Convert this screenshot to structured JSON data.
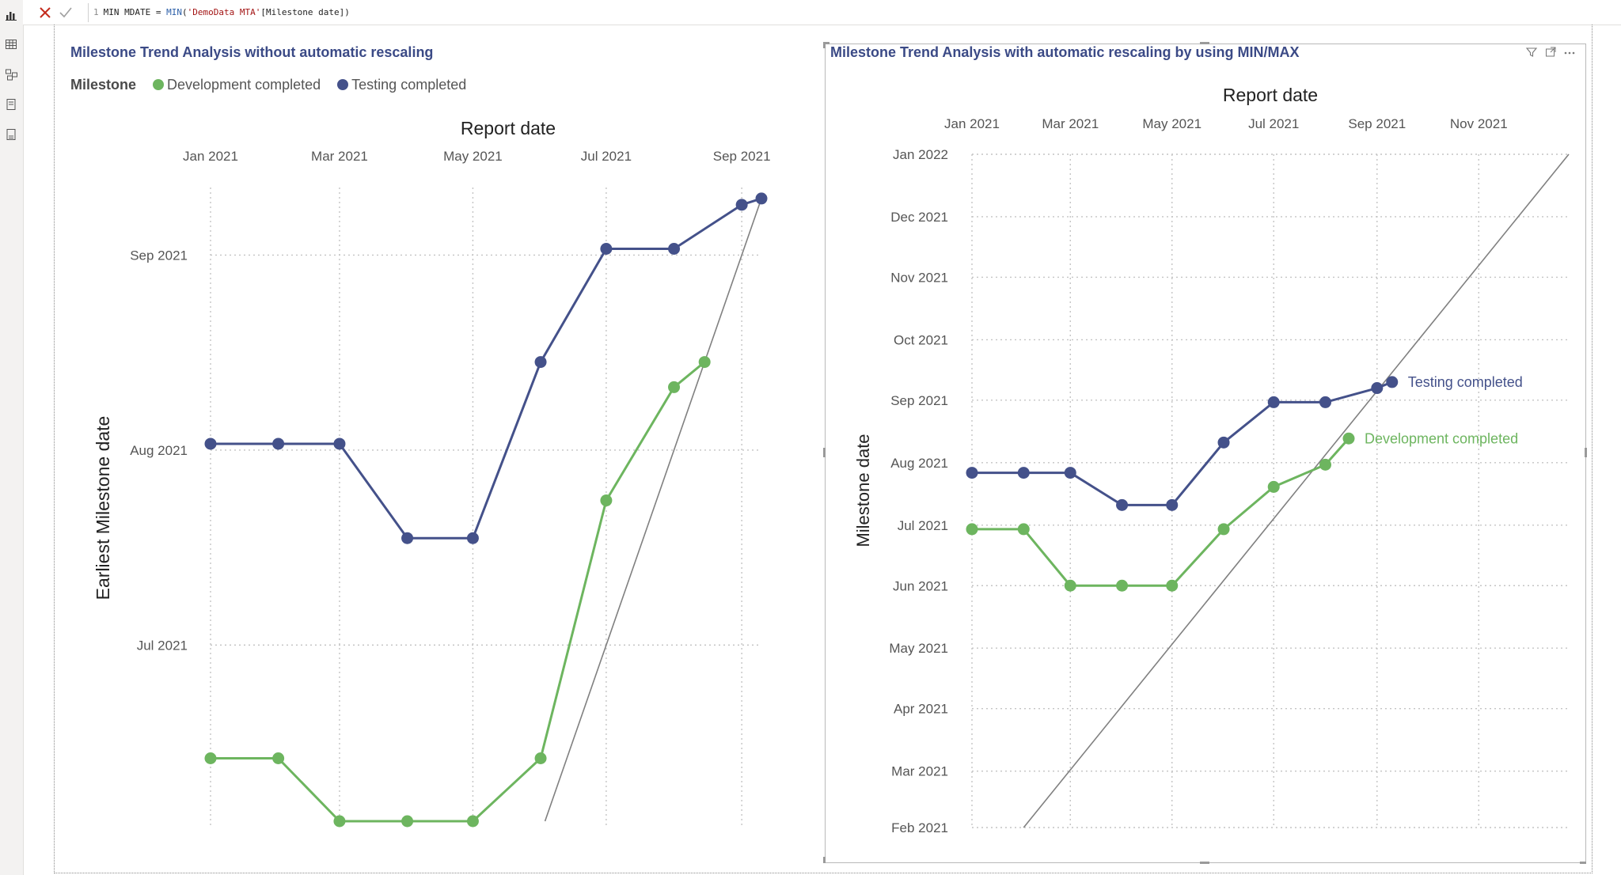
{
  "formula": {
    "line_number": "1",
    "part1": "MIN MDATE = ",
    "fn": "MIN",
    "part2": "(",
    "table": "'DemoData MTA'",
    "part3": "[Milestone date])"
  },
  "rail_icons": [
    "report-view-icon",
    "table-view-icon",
    "model-view-icon",
    "dax-query-icon",
    "tmdl-view-icon"
  ],
  "colors": {
    "development": "#6db55f",
    "testing": "#44518a",
    "title": "#3b4a86",
    "diagonal": "#808080"
  },
  "chart_data": [
    {
      "type": "line",
      "title": "Milestone Trend Analysis without automatic rescaling",
      "legend_title": "Milestone",
      "legend_position": "top-left",
      "xlabel": "Report date",
      "ylabel": "Earliest Milestone date",
      "grid": true,
      "x_axis_position": "top",
      "x_ticks": [
        "Jan 2021",
        "Mar 2021",
        "May 2021",
        "Jul 2021",
        "Sep 2021"
      ],
      "y_ticks": [
        "Jul 2021",
        "Aug 2021",
        "Sep 2021"
      ],
      "xlim": [
        "2021-01-01",
        "2021-09-10"
      ],
      "ylim": [
        "2021-06-03",
        "2021-09-12"
      ],
      "x": [
        "2021-01-01",
        "2021-02-01",
        "2021-03-01",
        "2021-04-01",
        "2021-05-01",
        "2021-06-01",
        "2021-07-01",
        "2021-08-01",
        "2021-08-15",
        "2021-09-01",
        "2021-09-10"
      ],
      "series": [
        {
          "name": "Development completed",
          "color": "#6db55f",
          "values": [
            "2021-06-13",
            "2021-06-13",
            "2021-06-03",
            "2021-06-03",
            "2021-06-03",
            "2021-06-13",
            "2021-07-24",
            "2021-08-11",
            "2021-08-15",
            null,
            null
          ]
        },
        {
          "name": "Testing completed",
          "color": "#44518a",
          "values": [
            "2021-08-02",
            "2021-08-02",
            "2021-08-02",
            "2021-07-18",
            "2021-07-18",
            "2021-08-15",
            "2021-09-02",
            "2021-09-02",
            null,
            "2021-09-09",
            "2021-09-10"
          ]
        }
      ],
      "diagonal": {
        "from": [
          "2021-06-03",
          "2021-06-03"
        ],
        "to": [
          "2021-09-10",
          "2021-09-10"
        ]
      }
    },
    {
      "type": "line",
      "title": "Milestone Trend Analysis with automatic rescaling by using MIN/MAX",
      "xlabel": "Report date",
      "ylabel": "Milestone date",
      "grid": true,
      "x_axis_position": "top",
      "x_ticks": [
        "Jan 2021",
        "Mar 2021",
        "May 2021",
        "Jul 2021",
        "Sep 2021",
        "Nov 2021"
      ],
      "y_ticks": [
        "Feb 2021",
        "Mar 2021",
        "Apr 2021",
        "May 2021",
        "Jun 2021",
        "Jul 2021",
        "Aug 2021",
        "Sep 2021",
        "Oct 2021",
        "Nov 2021",
        "Dec 2021",
        "Jan 2022"
      ],
      "xlim": [
        "2021-01-01",
        "2021-12-25"
      ],
      "ylim": [
        "2021-02-01",
        "2022-01-01"
      ],
      "x": [
        "2021-01-01",
        "2021-02-01",
        "2021-03-01",
        "2021-04-01",
        "2021-05-01",
        "2021-06-01",
        "2021-07-01",
        "2021-08-01",
        "2021-08-15",
        "2021-09-01",
        "2021-09-10"
      ],
      "series": [
        {
          "name": "Development completed",
          "color": "#6db55f",
          "end_label": "Development completed",
          "values": [
            "2021-06-29",
            "2021-06-29",
            "2021-06-01",
            "2021-06-01",
            "2021-06-01",
            "2021-06-29",
            "2021-07-20",
            "2021-07-31",
            "2021-08-13",
            null,
            null
          ]
        },
        {
          "name": "Testing completed",
          "color": "#44518a",
          "end_label": "Testing completed",
          "values": [
            "2021-07-27",
            "2021-07-27",
            "2021-07-27",
            "2021-07-11",
            "2021-07-11",
            "2021-08-11",
            "2021-08-31",
            "2021-08-31",
            null,
            "2021-09-07",
            "2021-09-10"
          ]
        }
      ],
      "diagonal": {
        "from": [
          "2021-02-01",
          "2021-02-01"
        ],
        "to": [
          "2021-12-25",
          "2022-01-01"
        ]
      }
    }
  ]
}
